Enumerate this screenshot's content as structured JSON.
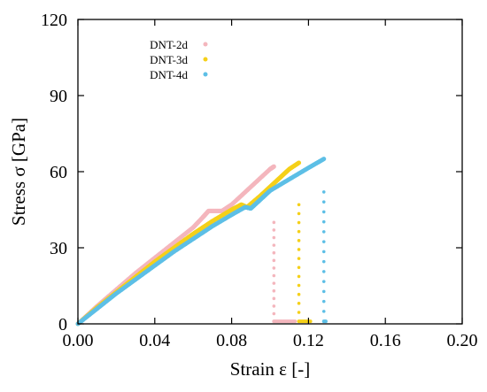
{
  "chart_data": {
    "type": "scatter",
    "xlabel": "Strain ε [-]",
    "ylabel": "Stress σ [GPa]",
    "xlim": [
      0.0,
      0.2
    ],
    "ylim": [
      0,
      120
    ],
    "x_ticks": [
      "0.00",
      "0.04",
      "0.08",
      "0.12",
      "0.16",
      "0.20"
    ],
    "y_ticks": [
      "0",
      "30",
      "60",
      "90",
      "120"
    ],
    "grid": false,
    "legend_position": "top-left",
    "series": [
      {
        "name": "DNT-2d",
        "color": "#f4b6bd",
        "curve": [
          [
            0.0,
            0.0
          ],
          [
            0.01,
            7.0
          ],
          [
            0.02,
            13.5
          ],
          [
            0.03,
            20.0
          ],
          [
            0.04,
            26.0
          ],
          [
            0.05,
            32.0
          ],
          [
            0.06,
            38.0
          ],
          [
            0.065,
            42.0
          ],
          [
            0.068,
            44.5
          ],
          [
            0.075,
            44.5
          ],
          [
            0.08,
            47.0
          ],
          [
            0.09,
            54.0
          ],
          [
            0.1,
            61.0
          ],
          [
            0.102,
            62.0
          ]
        ],
        "drop": {
          "x": 0.102,
          "from": 40,
          "to": 1
        },
        "tail_x": [
          0.102,
          0.113
        ],
        "tail_y": 1.0
      },
      {
        "name": "DNT-3d",
        "color": "#f5d019",
        "curve": [
          [
            0.0,
            0.0
          ],
          [
            0.01,
            6.5
          ],
          [
            0.02,
            12.5
          ],
          [
            0.03,
            18.5
          ],
          [
            0.04,
            24.5
          ],
          [
            0.05,
            30.0
          ],
          [
            0.06,
            35.5
          ],
          [
            0.07,
            40.5
          ],
          [
            0.08,
            45.0
          ],
          [
            0.085,
            47.0
          ],
          [
            0.088,
            46.0
          ],
          [
            0.095,
            50.5
          ],
          [
            0.1,
            54.0
          ],
          [
            0.105,
            57.5
          ],
          [
            0.11,
            61.0
          ],
          [
            0.115,
            63.5
          ]
        ],
        "drop": {
          "x": 0.115,
          "from": 47,
          "to": 1
        },
        "tail_x": [
          0.115,
          0.121
        ],
        "tail_y": 1.0
      },
      {
        "name": "DNT-4d",
        "color": "#5dbfe6",
        "curve": [
          [
            0.0,
            0.0
          ],
          [
            0.01,
            6.0
          ],
          [
            0.02,
            12.0
          ],
          [
            0.03,
            17.5
          ],
          [
            0.04,
            23.0
          ],
          [
            0.05,
            28.5
          ],
          [
            0.06,
            33.5
          ],
          [
            0.07,
            38.5
          ],
          [
            0.08,
            43.0
          ],
          [
            0.087,
            46.0
          ],
          [
            0.09,
            45.5
          ],
          [
            0.095,
            49.0
          ],
          [
            0.1,
            52.5
          ],
          [
            0.11,
            57.0
          ],
          [
            0.12,
            61.5
          ],
          [
            0.128,
            65.0
          ]
        ],
        "drop": {
          "x": 0.128,
          "from": 52,
          "to": 1
        },
        "tail_x": [
          0.128,
          0.129
        ],
        "tail_y": 1.0
      }
    ]
  }
}
